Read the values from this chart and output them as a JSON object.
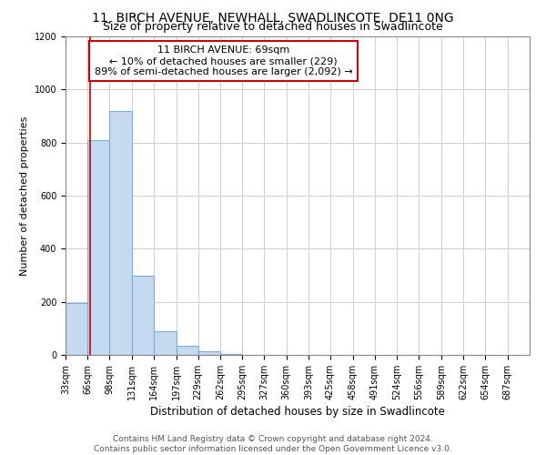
{
  "title": "11, BIRCH AVENUE, NEWHALL, SWADLINCOTE, DE11 0NG",
  "subtitle": "Size of property relative to detached houses in Swadlincote",
  "xlabel": "Distribution of detached houses by size in Swadlincote",
  "ylabel": "Number of detached properties",
  "bar_edges": [
    33,
    66,
    98,
    131,
    164,
    197,
    229,
    262,
    295,
    327,
    360,
    393,
    425,
    458,
    491,
    524,
    556,
    589,
    622,
    654,
    687,
    720
  ],
  "bar_heights": [
    195,
    810,
    920,
    300,
    90,
    35,
    15,
    5,
    0,
    0,
    0,
    0,
    0,
    0,
    0,
    0,
    0,
    0,
    0,
    0,
    0
  ],
  "bar_color": "#c5d9f1",
  "bar_edge_color": "#7aadda",
  "property_size": 69,
  "annotation_line1": "11 BIRCH AVENUE: 69sqm",
  "annotation_line2": "← 10% of detached houses are smaller (229)",
  "annotation_line3": "89% of semi-detached houses are larger (2,092) →",
  "annotation_box_color": "#ffffff",
  "annotation_box_edge_color": "#cc0000",
  "vline_color": "#cc0000",
  "ylim": [
    0,
    1200
  ],
  "yticks": [
    0,
    200,
    400,
    600,
    800,
    1000,
    1200
  ],
  "tick_labels": [
    "33sqm",
    "66sqm",
    "98sqm",
    "131sqm",
    "164sqm",
    "197sqm",
    "229sqm",
    "262sqm",
    "295sqm",
    "327sqm",
    "360sqm",
    "393sqm",
    "425sqm",
    "458sqm",
    "491sqm",
    "524sqm",
    "556sqm",
    "589sqm",
    "622sqm",
    "654sqm",
    "687sqm"
  ],
  "tick_positions": [
    33,
    66,
    98,
    131,
    164,
    197,
    229,
    262,
    295,
    327,
    360,
    393,
    425,
    458,
    491,
    524,
    556,
    589,
    622,
    654,
    687
  ],
  "footer_line1": "Contains HM Land Registry data © Crown copyright and database right 2024.",
  "footer_line2": "Contains public sector information licensed under the Open Government Licence v3.0.",
  "title_fontsize": 10,
  "subtitle_fontsize": 9,
  "tick_label_fontsize": 7,
  "ylabel_fontsize": 8,
  "xlabel_fontsize": 8.5,
  "annotation_fontsize": 8,
  "footer_fontsize": 6.5
}
